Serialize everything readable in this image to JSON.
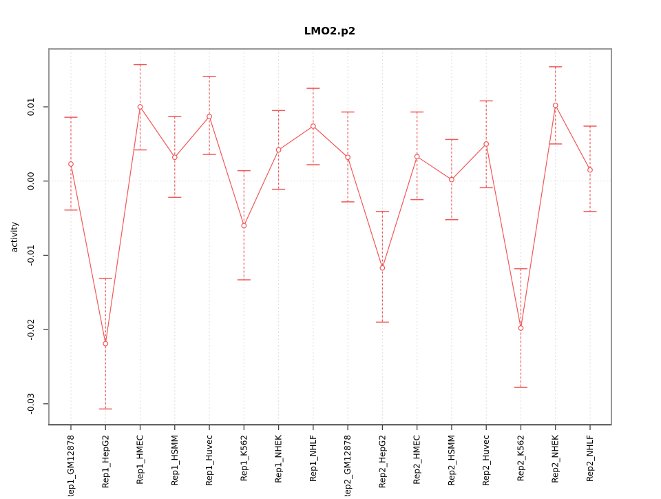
{
  "chart_data": {
    "type": "line",
    "title": "LMO2.p2",
    "xlabel": "",
    "ylabel": "activity",
    "legend": "none",
    "grid": "vertical-dotted-per-category",
    "reference_line_y": 0,
    "marker": "open-circle",
    "error_bars": true,
    "ylim": [
      -0.0328,
      0.0178
    ],
    "ytick_values": [
      0.01,
      0.0,
      -0.01,
      -0.02,
      -0.03
    ],
    "ytick_labels": [
      "0.01",
      "0.00",
      "-0.01",
      "-0.02",
      "-0.03"
    ],
    "categories": [
      "Rep1_GM12878",
      "Rep1_HepG2",
      "Rep1_HMEC",
      "Rep1_HSMM",
      "Rep1_Huvec",
      "Rep1_K562",
      "Rep1_NHEK",
      "Rep1_NHLF",
      "Rep2_GM12878",
      "Rep2_HepG2",
      "Rep2_HMEC",
      "Rep2_HSMM",
      "Rep2_Huvec",
      "Rep2_K562",
      "Rep2_NHEK",
      "Rep2_NHLF"
    ],
    "series": [
      {
        "name": "activity",
        "values": [
          0.0023,
          -0.0219,
          0.01,
          0.0032,
          0.0087,
          -0.006,
          0.0042,
          0.0074,
          0.0032,
          -0.0117,
          0.0033,
          0.0002,
          0.005,
          -0.0198,
          0.0102,
          0.0015
        ],
        "upper": [
          0.0086,
          -0.0131,
          0.0157,
          0.0087,
          0.0141,
          0.0014,
          0.0095,
          0.0125,
          0.0093,
          -0.0041,
          0.0093,
          0.0056,
          0.0108,
          -0.0118,
          0.0154,
          0.0074
        ],
        "lower": [
          -0.0039,
          -0.0307,
          0.0042,
          -0.0022,
          0.0036,
          -0.0133,
          -0.0011,
          0.0022,
          -0.0028,
          -0.019,
          -0.0025,
          -0.0052,
          -0.0009,
          -0.0278,
          0.005,
          -0.0041
        ]
      }
    ],
    "colors": {
      "series": "#f25757",
      "grid": "#dcdcdc",
      "box": "#979797",
      "axis": "#404040",
      "text": "#000000",
      "background": "#ffffff"
    }
  }
}
